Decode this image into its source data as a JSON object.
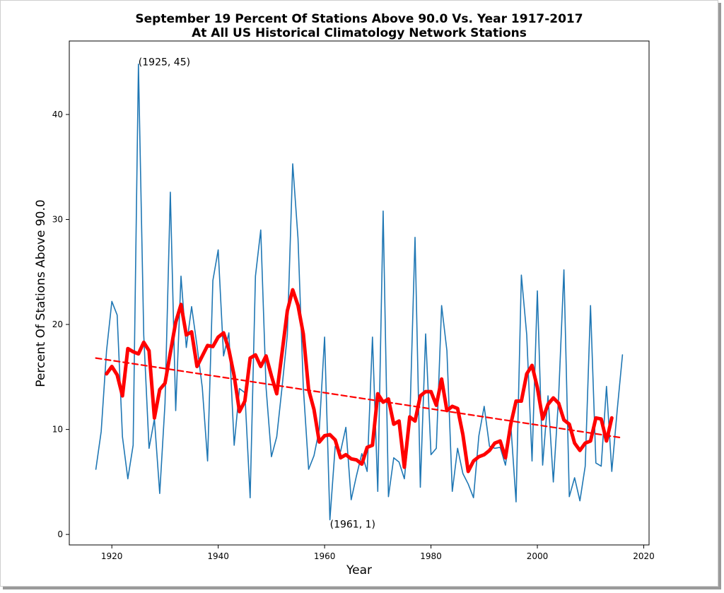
{
  "chart_data": {
    "type": "line",
    "title": "September 19 Percent Of Stations Above 90.0 Vs. Year 1917-2017",
    "subtitle": "At All US Historical Climatology Network Stations",
    "xlabel": "Year",
    "ylabel": "Percent Of Stations Above 90.0",
    "xlim": [
      1912,
      2021
    ],
    "ylim": [
      -1,
      47
    ],
    "x_ticks": [
      1920,
      1940,
      1960,
      1980,
      2000,
      2020
    ],
    "y_ticks": [
      0,
      10,
      20,
      30,
      40
    ],
    "grid": false,
    "colors": {
      "raw": "#1f77b4",
      "smoothed": "#ff0000",
      "trend": "#ff0000"
    },
    "annotations": [
      {
        "text": "(1925, 45)",
        "x": 1925,
        "y": 45
      },
      {
        "text": "(1961, 1)",
        "x": 1961,
        "y": 1
      }
    ],
    "series": [
      {
        "x": [
          1917,
          1918,
          1919,
          1920,
          1921,
          1922,
          1923,
          1924,
          1925,
          1926,
          1927,
          1928,
          1929,
          1930,
          1931,
          1932,
          1933,
          1934,
          1935,
          1936,
          1937,
          1938,
          1939,
          1940,
          1941,
          1942,
          1943,
          1944,
          1945,
          1946,
          1947,
          1948,
          1949,
          1950,
          1951,
          1952,
          1953,
          1954,
          1955,
          1956,
          1957,
          1958,
          1959,
          1960,
          1961,
          1962,
          1963,
          1964,
          1965,
          1966,
          1967,
          1968,
          1969,
          1970,
          1971,
          1972,
          1973,
          1974,
          1975,
          1976,
          1977,
          1978,
          1979,
          1980,
          1981,
          1982,
          1983,
          1984,
          1985,
          1986,
          1987,
          1988,
          1989,
          1990,
          1991,
          1992,
          1993,
          1994,
          1995,
          1996,
          1997,
          1998,
          1999,
          2000,
          2001,
          2002,
          2003,
          2004,
          2005,
          2006,
          2007,
          2008,
          2009,
          2010,
          2011,
          2012,
          2013,
          2014,
          2015,
          2016
        ],
        "values": [
          6.2,
          9.8,
          17.5,
          22.2,
          20.9,
          9.3,
          5.3,
          8.5,
          44.8,
          19.0,
          8.2,
          11.0,
          3.9,
          12.5,
          32.6,
          11.8,
          24.6,
          17.8,
          21.7,
          18.0,
          14.0,
          7.0,
          24.2,
          27.1,
          17.0,
          19.2,
          8.5,
          13.9,
          13.5,
          3.5,
          24.6,
          29.0,
          14.0,
          7.4,
          9.3,
          14.0,
          19.0,
          35.3,
          28.2,
          14.0,
          6.2,
          7.5,
          10.0,
          18.8,
          1.4,
          8.4,
          7.9,
          10.2,
          3.3,
          5.6,
          7.7,
          6.0,
          18.8,
          4.1,
          30.8,
          3.6,
          7.3,
          6.9,
          5.3,
          10.5,
          28.3,
          4.5,
          19.1,
          7.6,
          8.2,
          21.8,
          17.5,
          4.1,
          8.2,
          5.8,
          4.8,
          3.5,
          9.4,
          12.2,
          8.4,
          8.2,
          8.3,
          6.6,
          10.5,
          3.1,
          24.7,
          19.0,
          7.0,
          23.2,
          6.6,
          13.2,
          5.0,
          13.1,
          25.2,
          3.6,
          5.4,
          3.2,
          6.5,
          21.8,
          6.8,
          6.5,
          14.1,
          6.0,
          11.8,
          17.1
        ]
      },
      {
        "x": [
          1919,
          1920,
          1921,
          1922,
          1923,
          1924,
          1925,
          1926,
          1927,
          1928,
          1929,
          1930,
          1931,
          1932,
          1933,
          1934,
          1935,
          1936,
          1937,
          1938,
          1939,
          1940,
          1941,
          1942,
          1943,
          1944,
          1945,
          1946,
          1947,
          1948,
          1949,
          1950,
          1951,
          1952,
          1953,
          1954,
          1955,
          1956,
          1957,
          1958,
          1959,
          1960,
          1961,
          1962,
          1963,
          1964,
          1965,
          1966,
          1967,
          1968,
          1969,
          1970,
          1971,
          1972,
          1973,
          1974,
          1975,
          1976,
          1977,
          1978,
          1979,
          1980,
          1981,
          1982,
          1983,
          1984,
          1985,
          1986,
          1987,
          1988,
          1989,
          1990,
          1991,
          1992,
          1993,
          1994,
          1995,
          1996,
          1997,
          1998,
          1999,
          2000,
          2001,
          2002,
          2003,
          2004,
          2005,
          2006,
          2007,
          2008,
          2009,
          2010,
          2011,
          2012,
          2013,
          2014
        ],
        "values": [
          15.3,
          16.0,
          15.2,
          13.2,
          17.7,
          17.4,
          17.2,
          18.3,
          17.5,
          11.1,
          13.8,
          14.4,
          17.3,
          20.2,
          21.9,
          19.0,
          19.3,
          16.0,
          17.0,
          18.0,
          17.9,
          18.8,
          19.2,
          17.6,
          15.1,
          11.7,
          12.7,
          16.8,
          17.1,
          16.0,
          17.0,
          15.1,
          13.4,
          17.3,
          21.3,
          23.3,
          21.8,
          19.1,
          13.8,
          11.9,
          8.8,
          9.4,
          9.5,
          9.0,
          7.3,
          7.6,
          7.2,
          7.1,
          6.7,
          8.3,
          8.5,
          13.4,
          12.6,
          12.9,
          10.5,
          10.8,
          6.4,
          11.2,
          10.8,
          13.2,
          13.6,
          13.6,
          12.3,
          14.8,
          11.8,
          12.2,
          12.0,
          9.5,
          6.0,
          7.0,
          7.4,
          7.6,
          8.0,
          8.7,
          8.9,
          7.3,
          10.5,
          12.7,
          12.7,
          15.3,
          16.1,
          14.0,
          11.0,
          12.4,
          13.0,
          12.5,
          10.9,
          10.5,
          8.7,
          8.0,
          8.7,
          8.9,
          11.1,
          11.0,
          8.9,
          11.1
        ]
      },
      {
        "x": [
          1917,
          2016
        ],
        "values": [
          16.8,
          9.2
        ]
      }
    ]
  }
}
